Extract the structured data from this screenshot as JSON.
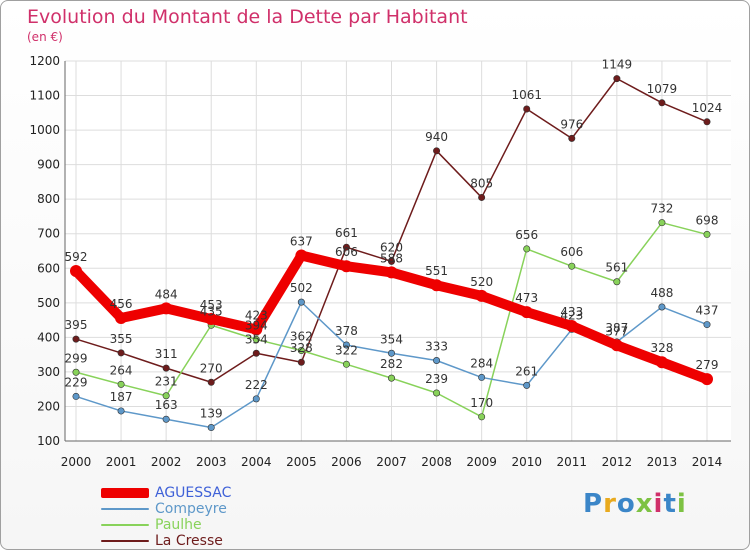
{
  "title": "Evolution du Montant de la Dette par Habitant",
  "unit": "(en €)",
  "logo": {
    "text": "Proxiti",
    "colors": [
      "#3b86c8",
      "#e9aa1e",
      "#3b86c8",
      "#7dc243",
      "#d0306a",
      "#3b86c8",
      "#7dc243"
    ]
  },
  "chart_data": {
    "type": "line",
    "title": "Evolution du Montant de la Dette par Habitant",
    "ylabel": "(en €)",
    "xlabel": "",
    "x": [
      "2000",
      "2001",
      "2002",
      "2003",
      "2004",
      "2005",
      "2006",
      "2007",
      "2008",
      "2009",
      "2010",
      "2011",
      "2012",
      "2013",
      "2014"
    ],
    "ylim": [
      100,
      1200
    ],
    "yticks": [
      100,
      200,
      300,
      400,
      500,
      600,
      700,
      800,
      900,
      1000,
      1100,
      1200
    ],
    "grid": true,
    "legend": "bottom-left",
    "series": [
      {
        "name": "AGUESSAC",
        "color": "#ee0000",
        "values": [
          592,
          456,
          484,
          453,
          423,
          637,
          606,
          588,
          551,
          520,
          473,
          433,
          377,
          328,
          279
        ],
        "labels": [
          "592",
          "456",
          "484",
          "453",
          "423",
          "637",
          "606",
          "588",
          "551",
          "520",
          "473",
          "433",
          "377",
          "328",
          "279"
        ]
      },
      {
        "name": "Compeyre",
        "color": "#5e98c9",
        "values": [
          229,
          187,
          163,
          139,
          222,
          502,
          378,
          354,
          333,
          284,
          261,
          423,
          387,
          488,
          437
        ],
        "labels": [
          "229",
          "187",
          "163",
          "139",
          "222",
          "502",
          "378",
          "354",
          "333",
          "284",
          "261",
          "423",
          "387",
          "488",
          "437"
        ]
      },
      {
        "name": "Paulhe",
        "color": "#88d25a",
        "values": [
          299,
          264,
          231,
          435,
          394,
          362,
          322,
          282,
          239,
          170,
          656,
          606,
          561,
          732,
          698
        ],
        "labels": [
          "299",
          "264",
          "231",
          "435",
          "394",
          "362",
          "322",
          "282",
          "239",
          "170",
          "656",
          "606",
          "561",
          "732",
          "698"
        ]
      },
      {
        "name": "La Cresse",
        "color": "#6e1c1c",
        "values": [
          395,
          355,
          311,
          270,
          354,
          328,
          661,
          620,
          940,
          805,
          1061,
          976,
          1149,
          1079,
          1024
        ],
        "labels": [
          "395",
          "355",
          "311",
          "270",
          "354",
          "328",
          "661",
          "620",
          "940",
          "805",
          "1061",
          "976",
          "1149",
          "1079",
          "1024"
        ]
      }
    ]
  }
}
